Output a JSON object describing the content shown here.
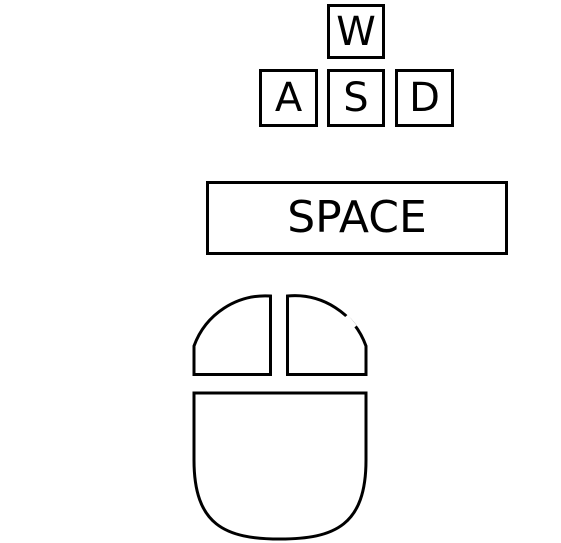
{
  "keys": {
    "w": "W",
    "a": "A",
    "s": "S",
    "d": "D",
    "space": "SPACE"
  },
  "mouse": {
    "icon": "mouse-icon",
    "parts": [
      "left-mouse-button",
      "right-mouse-button",
      "mouse-body"
    ]
  },
  "colors": {
    "stroke": "#000000",
    "background": "#ffffff"
  }
}
